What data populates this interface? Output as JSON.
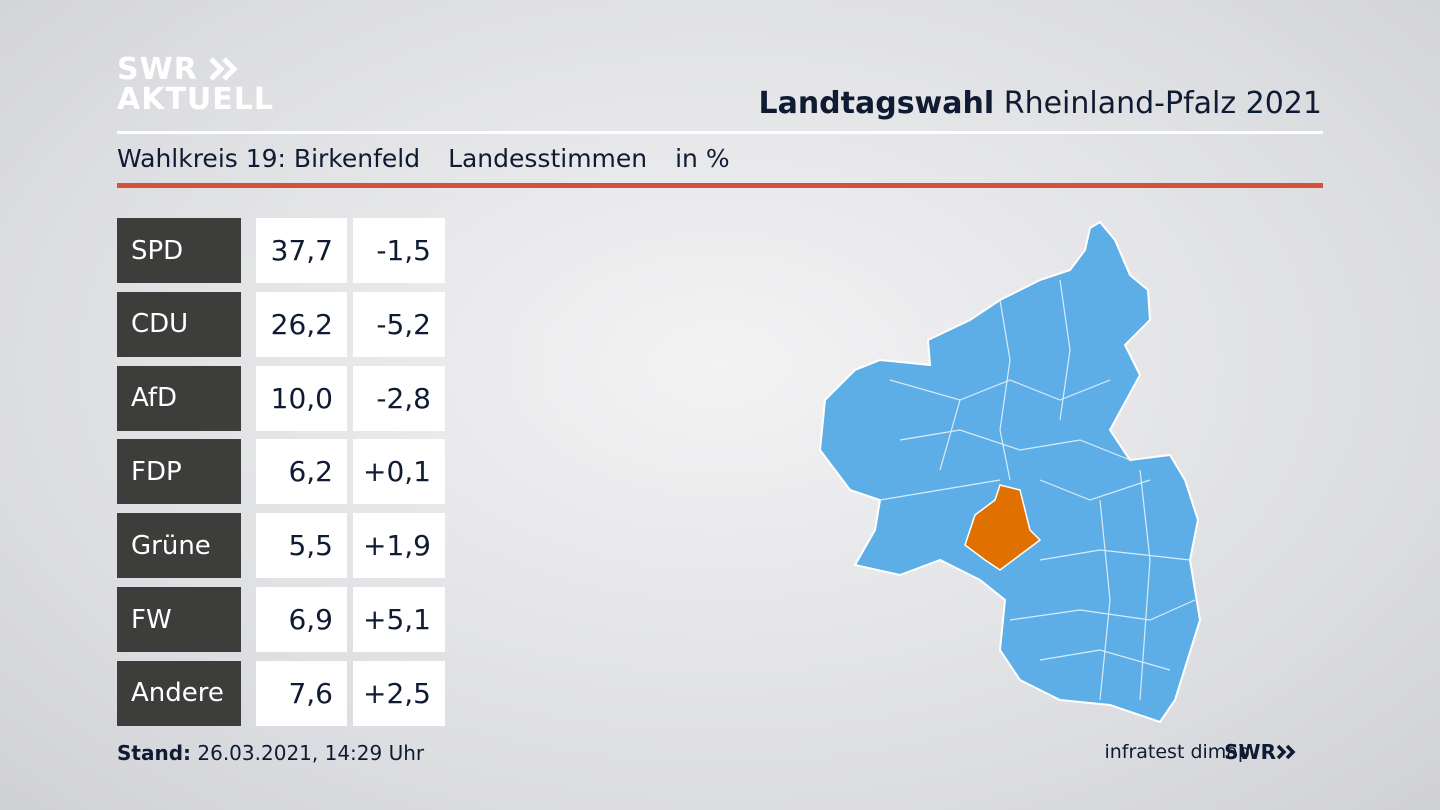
{
  "header": {
    "logo_top": "SWR",
    "logo_bottom": "AKTUELL",
    "title_bold": "Landtagswahl",
    "title_rest": "Rheinland-Pfalz 2021"
  },
  "subtitle": {
    "district": "Wahlkreis 19: Birkenfeld",
    "vote_type": "Landesstimmen",
    "unit": "in %"
  },
  "table": {
    "rows": [
      [
        "SPD",
        "37,7",
        "-1,5"
      ],
      [
        "CDU",
        "26,2",
        "-5,2"
      ],
      [
        "AfD",
        "10,0",
        "-2,8"
      ],
      [
        "FDP",
        "6,2",
        "+0,1"
      ],
      [
        "Grüne",
        "5,5",
        "+1,9"
      ],
      [
        "FW",
        "6,9",
        "+5,1"
      ],
      [
        "Andere",
        "7,6",
        "+2,5"
      ]
    ]
  },
  "footer": {
    "stand_label": "Stand:",
    "stand_value": "26.03.2021, 14:29 Uhr",
    "source": "infratest dimap",
    "brand": "SWR"
  }
}
